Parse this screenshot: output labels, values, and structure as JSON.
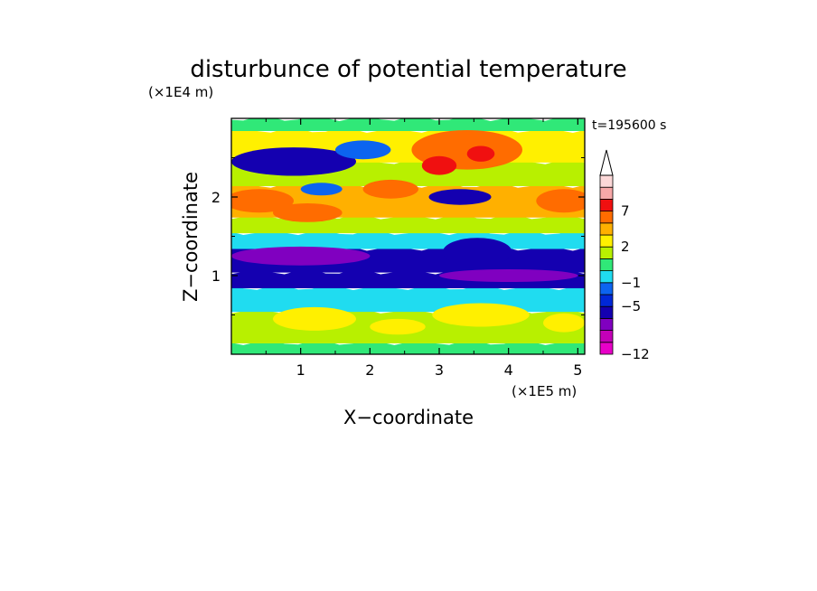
{
  "chart_data": {
    "type": "heatmap",
    "title": "disturbunce of potential temperature",
    "time_label": "t=195600 s",
    "xlabel": "X−coordinate",
    "ylabel": "Z−coordinate",
    "x_scale_label": "(×1E5 m)",
    "y_scale_label": "(×1E4 m)",
    "xlim": [
      0,
      5.1
    ],
    "ylim": [
      0,
      3.0
    ],
    "x_ticks": [
      "1",
      "2",
      "3",
      "4",
      "5"
    ],
    "y_ticks": [
      "1",
      "2"
    ],
    "colorbar": {
      "levels": [
        -12,
        -11,
        -9,
        -7,
        -5,
        -3,
        -1,
        0,
        1,
        2,
        3,
        5,
        7,
        9,
        11
      ],
      "tick_labels": [
        "−12",
        "−5",
        "−1",
        "2",
        "7"
      ],
      "colors": [
        "#e800c8",
        "#c400b8",
        "#8000c0",
        "#1400b0",
        "#0028d8",
        "#0c64f0",
        "#20dcf0",
        "#30e878",
        "#b8f000",
        "#fff000",
        "#ffb000",
        "#ff6c00",
        "#f01010",
        "#f8a8a8",
        "#fcd8d8"
      ],
      "extend": "max"
    },
    "bands": [
      {
        "z": [
          0.0,
          0.15
        ],
        "value": 0
      },
      {
        "z": [
          0.15,
          0.55
        ],
        "value": 1.5
      },
      {
        "z": [
          0.55,
          0.85
        ],
        "value": -0.5
      },
      {
        "z": [
          0.85,
          1.05
        ],
        "value": -6
      },
      {
        "z": [
          1.05,
          1.35
        ],
        "value": -6
      },
      {
        "z": [
          1.35,
          1.55
        ],
        "value": -0.5
      },
      {
        "z": [
          1.55,
          1.75
        ],
        "value": 1.5
      },
      {
        "z": [
          1.75,
          2.15
        ],
        "value": 3
      },
      {
        "z": [
          2.15,
          2.45
        ],
        "value": 1.5
      },
      {
        "z": [
          2.45,
          2.85
        ],
        "value": 2
      },
      {
        "z": [
          2.85,
          3.0
        ],
        "value": 0
      }
    ],
    "features": [
      {
        "x": 0.9,
        "z": 2.45,
        "rx": 0.9,
        "rz": 0.18,
        "value": -6
      },
      {
        "x": 1.9,
        "z": 2.6,
        "rx": 0.4,
        "rz": 0.12,
        "value": -3
      },
      {
        "x": 1.3,
        "z": 2.1,
        "rx": 0.3,
        "rz": 0.08,
        "value": -3
      },
      {
        "x": 3.4,
        "z": 2.6,
        "rx": 0.8,
        "rz": 0.25,
        "value": 5
      },
      {
        "x": 3.0,
        "z": 2.4,
        "rx": 0.25,
        "rz": 0.12,
        "value": 7
      },
      {
        "x": 3.6,
        "z": 2.55,
        "rx": 0.2,
        "rz": 0.1,
        "value": 7
      },
      {
        "x": 3.3,
        "z": 2.0,
        "rx": 0.45,
        "rz": 0.1,
        "value": -6
      },
      {
        "x": 0.4,
        "z": 1.95,
        "rx": 0.5,
        "rz": 0.15,
        "value": 5
      },
      {
        "x": 1.1,
        "z": 1.8,
        "rx": 0.5,
        "rz": 0.12,
        "value": 5
      },
      {
        "x": 2.3,
        "z": 2.1,
        "rx": 0.4,
        "rz": 0.12,
        "value": 5
      },
      {
        "x": 4.8,
        "z": 1.95,
        "rx": 0.4,
        "rz": 0.15,
        "value": 5
      },
      {
        "x": 3.55,
        "z": 1.3,
        "rx": 0.5,
        "rz": 0.18,
        "value": -6
      },
      {
        "x": 1.0,
        "z": 1.25,
        "rx": 1.0,
        "rz": 0.12,
        "value": -9
      },
      {
        "x": 4.0,
        "z": 1.0,
        "rx": 1.0,
        "rz": 0.08,
        "value": -9
      },
      {
        "x": 1.2,
        "z": 0.45,
        "rx": 0.6,
        "rz": 0.15,
        "value": 2
      },
      {
        "x": 3.6,
        "z": 0.5,
        "rx": 0.7,
        "rz": 0.15,
        "value": 2
      },
      {
        "x": 2.4,
        "z": 0.35,
        "rx": 0.4,
        "rz": 0.1,
        "value": 2
      },
      {
        "x": 4.8,
        "z": 0.4,
        "rx": 0.3,
        "rz": 0.12,
        "value": 2
      }
    ]
  }
}
